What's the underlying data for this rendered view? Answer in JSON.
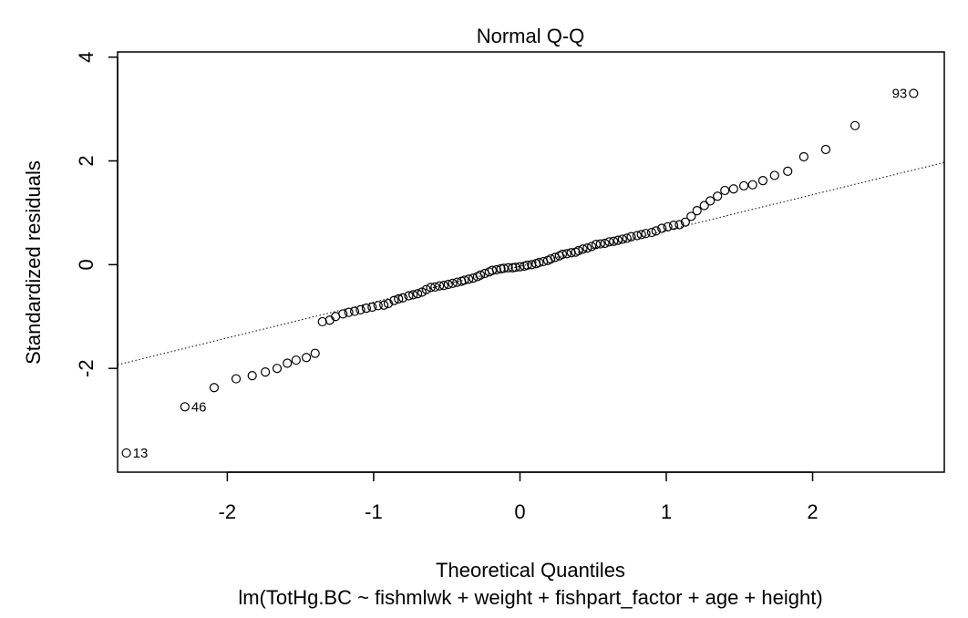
{
  "chart_data": {
    "type": "scatter",
    "title": "Normal Q-Q",
    "xlabel": "Theoretical Quantiles",
    "subtitle": "lm(TotHg.BC ~ fishmlwk + weight + fishpart_factor + age + height)",
    "ylabel": "Standardized residuals",
    "xlim": [
      -2.75,
      2.9
    ],
    "ylim": [
      -4.0,
      4.1
    ],
    "xticks": [
      -2,
      -1,
      0,
      1,
      2
    ],
    "xtick_labels": [
      "-2",
      "-1",
      "0",
      "1",
      "2"
    ],
    "yticks": [
      -2,
      0,
      2,
      4
    ],
    "ytick_labels": [
      "-2",
      "0",
      "2",
      "4"
    ],
    "reference_line": {
      "x": [
        -2.75,
        2.9
      ],
      "y": [
        -1.93,
        1.97
      ]
    },
    "point_labels": [
      {
        "index": 13,
        "text": "13"
      },
      {
        "index": 46,
        "text": "46"
      },
      {
        "index": 93,
        "text": "93"
      }
    ],
    "x": [
      -2.69,
      -2.29,
      -2.09,
      -1.94,
      -1.83,
      -1.74,
      -1.66,
      -1.59,
      -1.53,
      -1.46,
      -1.4,
      -1.35,
      -1.3,
      -1.26,
      -1.21,
      -1.17,
      -1.13,
      -1.09,
      -1.05,
      -1.01,
      -0.97,
      -0.93,
      -0.9,
      -0.86,
      -0.83,
      -0.8,
      -0.76,
      -0.73,
      -0.7,
      -0.67,
      -0.64,
      -0.61,
      -0.58,
      -0.55,
      -0.52,
      -0.49,
      -0.46,
      -0.43,
      -0.4,
      -0.38,
      -0.35,
      -0.32,
      -0.29,
      -0.27,
      -0.24,
      -0.21,
      -0.19,
      -0.16,
      -0.13,
      -0.11,
      -0.08,
      -0.05,
      -0.03,
      0.0,
      0.03,
      0.05,
      0.08,
      0.11,
      0.13,
      0.16,
      0.19,
      0.21,
      0.24,
      0.27,
      0.29,
      0.32,
      0.35,
      0.38,
      0.4,
      0.43,
      0.46,
      0.49,
      0.52,
      0.55,
      0.58,
      0.61,
      0.64,
      0.67,
      0.7,
      0.73,
      0.76,
      0.8,
      0.83,
      0.86,
      0.9,
      0.93,
      0.97,
      1.01,
      1.05,
      1.09,
      1.13,
      1.17,
      1.21,
      1.26,
      1.3,
      1.35,
      1.4,
      1.46,
      1.53,
      1.59,
      1.66,
      1.74,
      1.83,
      1.94,
      2.09,
      2.29,
      2.69
    ],
    "y": [
      -3.63,
      -2.74,
      -2.37,
      -2.2,
      -2.14,
      -2.07,
      -2.0,
      -1.9,
      -1.84,
      -1.79,
      -1.71,
      -1.1,
      -1.07,
      -1.0,
      -0.95,
      -0.92,
      -0.9,
      -0.87,
      -0.84,
      -0.82,
      -0.79,
      -0.78,
      -0.75,
      -0.69,
      -0.66,
      -0.64,
      -0.6,
      -0.58,
      -0.56,
      -0.53,
      -0.48,
      -0.44,
      -0.43,
      -0.41,
      -0.4,
      -0.38,
      -0.36,
      -0.34,
      -0.32,
      -0.3,
      -0.28,
      -0.26,
      -0.23,
      -0.2,
      -0.17,
      -0.14,
      -0.11,
      -0.1,
      -0.08,
      -0.07,
      -0.06,
      -0.06,
      -0.05,
      -0.04,
      -0.03,
      -0.01,
      0.0,
      0.02,
      0.04,
      0.06,
      0.08,
      0.11,
      0.14,
      0.17,
      0.2,
      0.21,
      0.23,
      0.24,
      0.27,
      0.3,
      0.32,
      0.35,
      0.39,
      0.4,
      0.41,
      0.44,
      0.45,
      0.47,
      0.49,
      0.51,
      0.54,
      0.56,
      0.58,
      0.6,
      0.62,
      0.65,
      0.7,
      0.73,
      0.76,
      0.77,
      0.82,
      0.93,
      1.04,
      1.14,
      1.23,
      1.32,
      1.43,
      1.46,
      1.52,
      1.54,
      1.62,
      1.72,
      1.8,
      2.08,
      2.22,
      2.68,
      3.3
    ]
  }
}
